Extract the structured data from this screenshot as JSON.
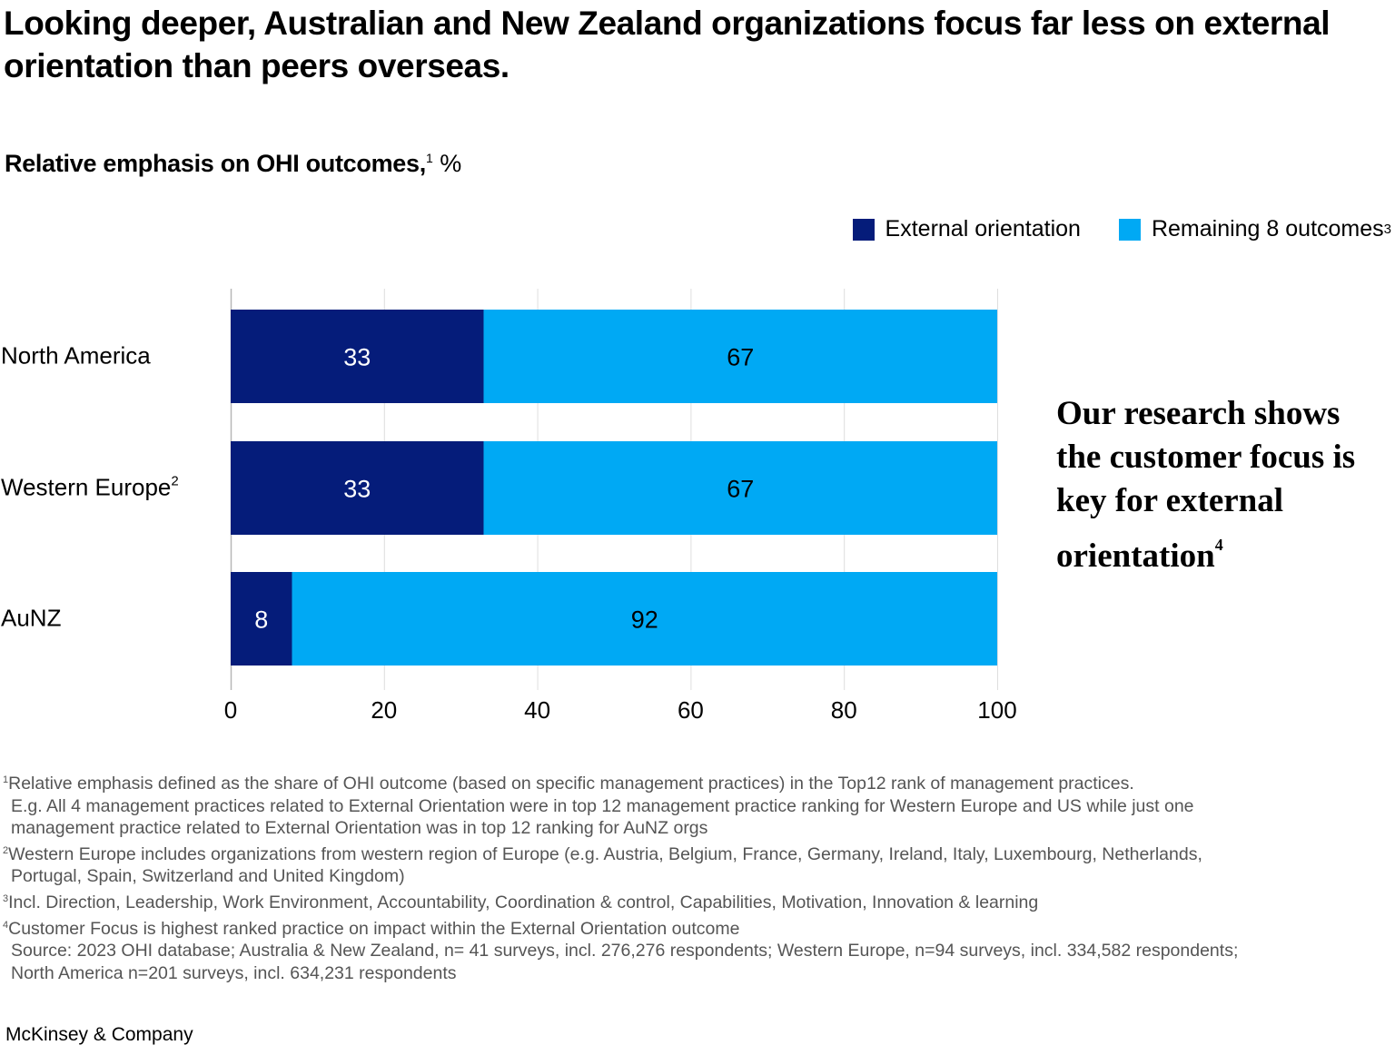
{
  "title": "Looking deeper, Australian and New Zealand organizations focus far less on external orientation than peers overseas.",
  "subtitle": {
    "text": "Relative emphasis on OHI outcomes,",
    "footnote_mark": "1",
    "unit": "%"
  },
  "legend": [
    {
      "label": "External orientation",
      "footnote_mark": "",
      "color": "#051C7A"
    },
    {
      "label": "Remaining 8 outcomes",
      "footnote_mark": "3",
      "color": "#00A9F4"
    }
  ],
  "callout": {
    "text": "Our research shows the customer focus is key for external orientation",
    "footnote_mark": "4"
  },
  "chart_data": {
    "type": "bar",
    "orientation": "horizontal",
    "stacked": true,
    "title": "Relative emphasis on OHI outcomes, %",
    "categories": [
      "North America",
      "Western Europe",
      "AuNZ"
    ],
    "category_footnotes": [
      "",
      "2",
      ""
    ],
    "series": [
      {
        "name": "External orientation",
        "color": "#051C7A",
        "label_color": "#ffffff",
        "values": [
          33,
          33,
          8
        ]
      },
      {
        "name": "Remaining 8 outcomes",
        "color": "#00A9F4",
        "label_color": "#000000",
        "values": [
          67,
          67,
          92
        ]
      }
    ],
    "xlabel": "",
    "ylabel": "",
    "xlim": [
      0,
      100
    ],
    "xticks": [
      0,
      20,
      40,
      60,
      80,
      100
    ],
    "grid": true,
    "legend_position": "top-right"
  },
  "footnotes": [
    {
      "mark": "1",
      "lines": [
        "Relative emphasis defined as the share of  OHI outcome (based on specific management practices) in the Top12 rank of management practices.",
        "E.g. All 4 management practices related to External Orientation were in top 12 management practice ranking for Western Europe and US while just one",
        "management practice related to External Orientation was in top 12 ranking for AuNZ orgs"
      ]
    },
    {
      "mark": "2",
      "lines": [
        "Western Europe includes organizations from western region of Europe (e.g. Austria, Belgium, France, Germany, Ireland, Italy, Luxembourg, Netherlands,",
        "Portugal, Spain, Switzerland and United Kingdom)"
      ]
    },
    {
      "mark": "3",
      "lines": [
        "Incl. Direction, Leadership, Work Environment, Accountability, Coordination & control, Capabilities, Motivation, Innovation & learning"
      ]
    },
    {
      "mark": "4",
      "lines": [
        "Customer Focus is highest ranked practice on impact within the External Orientation outcome"
      ]
    },
    {
      "mark": "",
      "lines": [
        "Source: 2023 OHI database; Australia & New Zealand, n= 41 surveys, incl. 276,276 respondents; Western Europe, n=94 surveys, incl. 334,582 respondents;",
        "North America n=201 surveys, incl. 634,231 respondents"
      ]
    }
  ],
  "brand": "McKinsey & Company"
}
